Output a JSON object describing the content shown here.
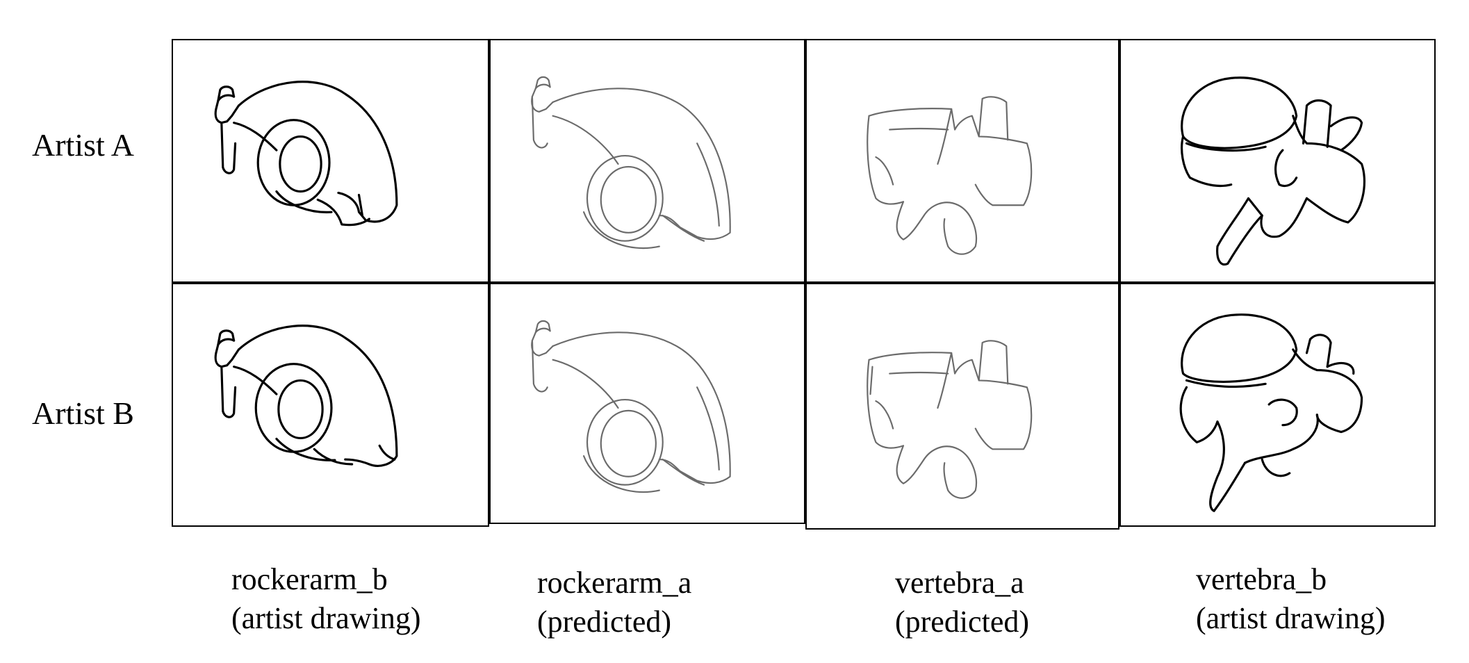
{
  "rows": [
    {
      "label": "Artist A"
    },
    {
      "label": "Artist B"
    }
  ],
  "columns": [
    {
      "name": "rockerarm_b",
      "kind": "(artist drawing)"
    },
    {
      "name": "rockerarm_a",
      "kind": "(predicted)"
    },
    {
      "name": "vertebra_a",
      "kind": "(predicted)"
    },
    {
      "name": "vertebra_b",
      "kind": "(artist drawing)"
    }
  ],
  "colors": {
    "artist_stroke": "#000000",
    "predicted_stroke": "#6b6b6b",
    "border": "#000000"
  }
}
